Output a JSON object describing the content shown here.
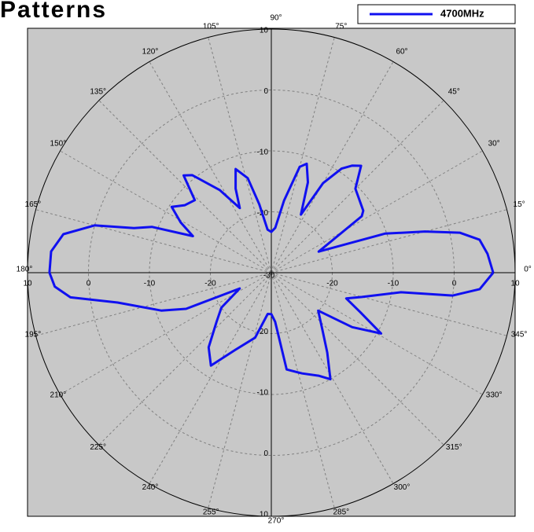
{
  "chart_data": {
    "type": "polar",
    "title": "Patterns",
    "legend": "top-right",
    "grid": true,
    "rlim": [
      -30,
      10
    ],
    "rticks": [
      -30,
      -20,
      -10,
      0,
      10
    ],
    "angleticks": [
      {
        "value": 0,
        "label": "0°"
      },
      {
        "value": 15,
        "label": "15°"
      },
      {
        "value": 30,
        "label": "30°"
      },
      {
        "value": 45,
        "label": "45°"
      },
      {
        "value": 60,
        "label": "60°"
      },
      {
        "value": 75,
        "label": "75°"
      },
      {
        "value": 90,
        "label": "90°"
      },
      {
        "value": 105,
        "label": "105°"
      },
      {
        "value": 120,
        "label": "120°"
      },
      {
        "value": 135,
        "label": "135°"
      },
      {
        "value": 150,
        "label": "150°"
      },
      {
        "value": 165,
        "label": "165°"
      },
      {
        "value": 180,
        "label": "180°"
      },
      {
        "value": 195,
        "label": "195°"
      },
      {
        "value": 210,
        "label": "210°"
      },
      {
        "value": 225,
        "label": "225°"
      },
      {
        "value": 240,
        "label": "240°"
      },
      {
        "value": 255,
        "label": "255°"
      },
      {
        "value": 270,
        "label": "270°"
      },
      {
        "value": 285,
        "label": "285°"
      },
      {
        "value": 300,
        "label": "300°"
      },
      {
        "value": 315,
        "label": "315°"
      },
      {
        "value": 330,
        "label": "330°"
      },
      {
        "value": 345,
        "label": "345°"
      }
    ],
    "series": [
      {
        "name": "4700MHz",
        "color": "#1010f0",
        "angles": [
          0,
          5,
          9,
          12,
          15,
          19,
          24,
          32,
          34,
          45,
          50,
          53,
          56,
          60,
          63,
          68,
          72,
          75,
          80,
          85,
          90,
          95,
          100,
          104,
          109,
          113,
          116,
          122,
          129,
          132,
          136.5,
          142,
          146.5,
          151,
          155,
          159,
          162,
          165,
          169.5,
          174.5,
          180,
          183.7,
          187,
          191,
          199,
          203,
          206.6,
          215,
          222,
          230,
          237,
          245,
          256,
          265,
          270,
          274.5,
          279,
          287,
          294.6,
          299,
          305,
          311.7,
          321,
          326,
          331,
          336,
          341,
          345,
          351.4,
          352.8,
          355.5,
          360
        ],
        "values": [
          6.4,
          5.6,
          4.6,
          1.6,
          -3.9,
          -10.3,
          -21.5,
          -12.5,
          -11.8,
          -10.5,
          -7.1,
          -8,
          -9.4,
          -13,
          -19.3,
          -14,
          -11.2,
          -12,
          -18,
          -22.6,
          -23.3,
          -22.9,
          -18.6,
          -14,
          -12,
          -15,
          -18.2,
          -14,
          -9.4,
          -8.5,
          -12.7,
          -12,
          -10.4,
          -13,
          -15.8,
          -9,
          -6.3,
          0,
          4.7,
          6.3,
          6.4,
          5.6,
          3.2,
          -4.3,
          -10.9,
          -14.8,
          -24.2,
          -20,
          -17.9,
          -14,
          -11.8,
          -16,
          -19,
          -23.2,
          -23.2,
          -21.9,
          -13.9,
          -12.7,
          -11.4,
          -10,
          -14,
          -17.4,
          -20.1,
          -14,
          -9.4,
          -14,
          -17,
          -14.6,
          -8.5,
          0,
          4.3,
          6.4
        ]
      }
    ]
  }
}
